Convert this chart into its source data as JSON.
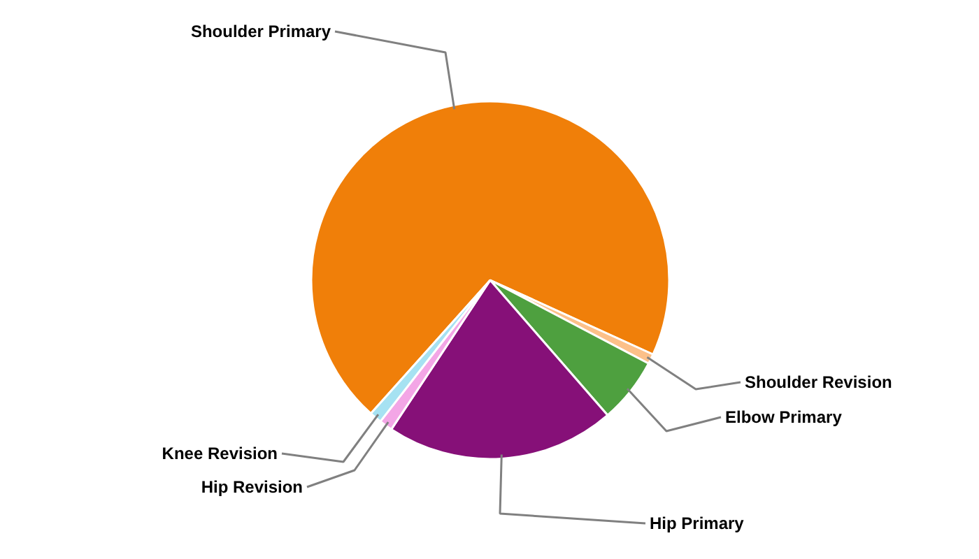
{
  "chart_data": {
    "type": "pie",
    "categories": [
      "Shoulder Primary",
      "Shoulder Revision",
      "Elbow Primary",
      "Hip Primary",
      "Hip Revision",
      "Knee Revision"
    ],
    "values": [
      70.2,
      0.9,
      5.9,
      20.7,
      1.2,
      1.1
    ],
    "colors": [
      "#f07f09",
      "#fcc089",
      "#4ea03f",
      "#861078",
      "#f3a6e6",
      "#a6e2f2"
    ]
  }
}
